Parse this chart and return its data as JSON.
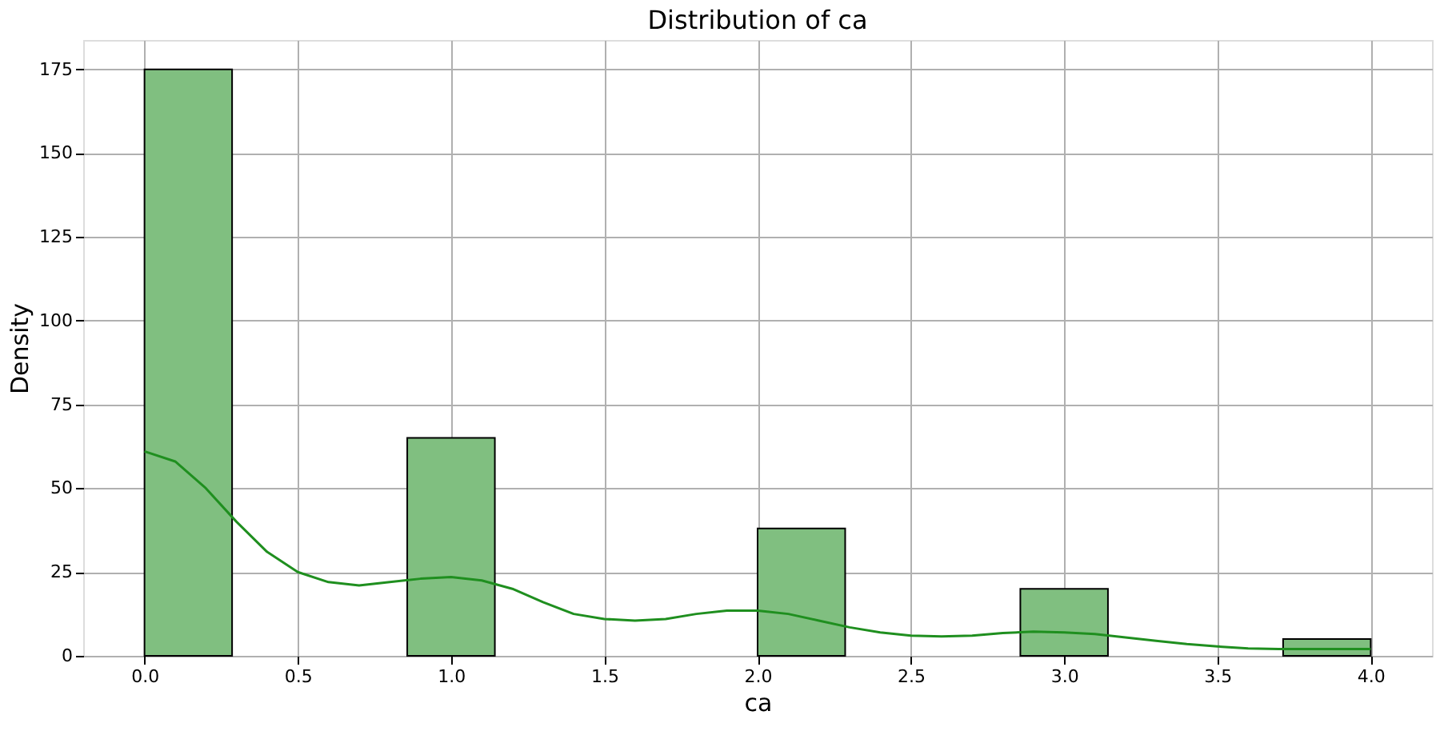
{
  "chart_data": {
    "type": "histogram",
    "title": "Distribution of ca",
    "xlabel": "ca",
    "ylabel": "Density",
    "bins": [
      0,
      0.2857,
      0.5714,
      0.8571,
      1.1429,
      1.4286,
      1.7143,
      2.0,
      2.2857,
      2.5714,
      2.8571,
      3.1429,
      3.4286,
      3.7143,
      4.0
    ],
    "values": [
      175,
      0,
      0,
      65,
      0,
      0,
      0,
      38,
      0,
      0,
      20,
      0,
      0,
      5
    ],
    "color": "#80bf80",
    "series": [
      {
        "type": "line",
        "color": "#1f8f1f",
        "x": [
          0,
          0.1,
          0.2,
          0.3,
          0.4,
          0.5,
          0.6,
          0.7,
          0.8,
          0.9,
          1.0,
          1.1,
          1.2,
          1.3,
          1.4,
          1.5,
          1.6,
          1.7,
          1.8,
          1.9,
          2.0,
          2.1,
          2.2,
          2.3,
          2.4,
          2.5,
          2.6,
          2.7,
          2.8,
          2.9,
          3.0,
          3.1,
          3.2,
          3.3,
          3.4,
          3.5,
          3.6,
          3.7,
          3.8,
          3.9,
          4.0
        ],
        "values": [
          61,
          58,
          50,
          40,
          31,
          25,
          22,
          21,
          22,
          23,
          23.5,
          22.5,
          20,
          16,
          12.5,
          11,
          10.5,
          11,
          12.5,
          13.5,
          13.5,
          12.5,
          10.5,
          8.5,
          7,
          6,
          5.8,
          6,
          6.8,
          7.2,
          7,
          6.5,
          5.5,
          4.5,
          3.5,
          2.8,
          2.2,
          2,
          2,
          2,
          2
        ]
      }
    ],
    "xlim": [
      -0.2,
      4.2
    ],
    "xticks": [
      {
        "value": 0,
        "label": "0.0"
      },
      0.5,
      {
        "value": 1,
        "label": "1.0"
      },
      1.5,
      {
        "value": 2,
        "label": "2.0"
      },
      2.5,
      {
        "value": 3,
        "label": "3.0"
      },
      3.5,
      {
        "value": 4,
        "label": "4.0"
      }
    ],
    "ylim": [
      0,
      183.75
    ],
    "yticks": [
      0,
      25,
      50,
      75,
      100,
      125,
      150,
      175
    ],
    "grid": true
  }
}
